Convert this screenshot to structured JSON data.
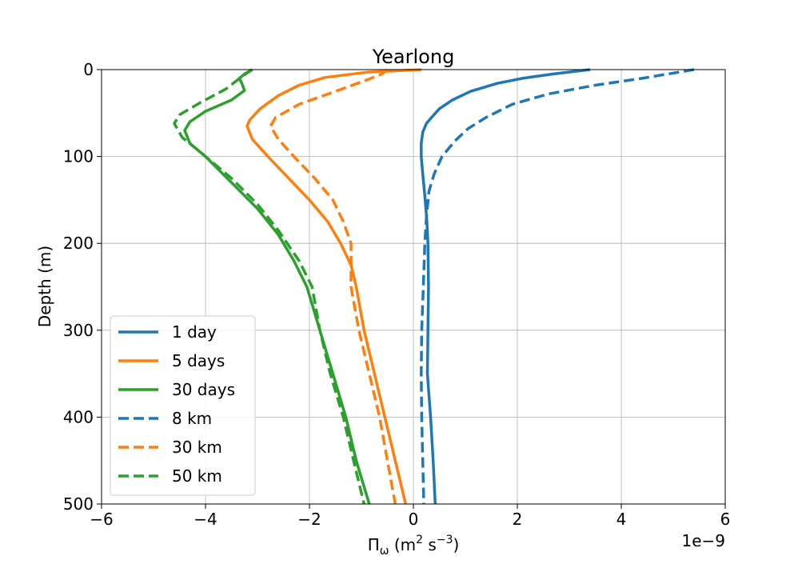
{
  "chart_data": {
    "type": "line",
    "title": "Yearlong",
    "xlabel": "Πω (m² s⁻³)",
    "xlabel_parts": {
      "symbol": "Π",
      "sub": "ω",
      "units_open": " (m",
      "sup1": "2",
      "units_mid": " s",
      "sup2": "−3",
      "units_close": ")"
    },
    "ylabel": "Depth (m)",
    "x_offset_label": "1e−9",
    "xlim": [
      -6,
      6
    ],
    "ylim": [
      0,
      500
    ],
    "y_inverted": true,
    "x_ticks": [
      -6,
      -4,
      -2,
      0,
      2,
      4,
      6
    ],
    "x_tick_labels": [
      "−6",
      "−4",
      "−2",
      "0",
      "2",
      "4",
      "6"
    ],
    "y_ticks": [
      0,
      100,
      200,
      300,
      400,
      500
    ],
    "y_tick_labels": [
      "0",
      "100",
      "200",
      "300",
      "400",
      "500"
    ],
    "grid": true,
    "legend_position": "lower-left",
    "series": [
      {
        "name": "1 day",
        "color": "#1f77b4",
        "dash": "solid",
        "points": [
          [
            3.4,
            0
          ],
          [
            2.7,
            5
          ],
          [
            2.1,
            10
          ],
          [
            1.6,
            16
          ],
          [
            1.1,
            25
          ],
          [
            0.75,
            35
          ],
          [
            0.5,
            45
          ],
          [
            0.35,
            55
          ],
          [
            0.25,
            62
          ],
          [
            0.18,
            72
          ],
          [
            0.15,
            85
          ],
          [
            0.15,
            100
          ],
          [
            0.18,
            120
          ],
          [
            0.22,
            145
          ],
          [
            0.26,
            175
          ],
          [
            0.28,
            200
          ],
          [
            0.29,
            250
          ],
          [
            0.28,
            300
          ],
          [
            0.27,
            350
          ],
          [
            0.33,
            400
          ],
          [
            0.38,
            450
          ],
          [
            0.42,
            500
          ]
        ]
      },
      {
        "name": "5 days",
        "color": "#ff7f0e",
        "dash": "solid",
        "points": [
          [
            0.15,
            0
          ],
          [
            -0.9,
            3
          ],
          [
            -1.7,
            9
          ],
          [
            -2.2,
            18
          ],
          [
            -2.6,
            30
          ],
          [
            -2.95,
            45
          ],
          [
            -3.15,
            58
          ],
          [
            -3.2,
            65
          ],
          [
            -3.1,
            80
          ],
          [
            -2.8,
            100
          ],
          [
            -2.4,
            125
          ],
          [
            -2.0,
            150
          ],
          [
            -1.65,
            175
          ],
          [
            -1.4,
            200
          ],
          [
            -1.2,
            225
          ],
          [
            -1.1,
            250
          ],
          [
            -0.95,
            300
          ],
          [
            -0.75,
            350
          ],
          [
            -0.55,
            400
          ],
          [
            -0.35,
            450
          ],
          [
            -0.15,
            500
          ]
        ]
      },
      {
        "name": "30 days",
        "color": "#2ca02c",
        "dash": "solid",
        "points": [
          [
            -3.1,
            0
          ],
          [
            -3.25,
            5
          ],
          [
            -3.35,
            10
          ],
          [
            -3.3,
            16
          ],
          [
            -3.25,
            24
          ],
          [
            -3.5,
            35
          ],
          [
            -4.0,
            48
          ],
          [
            -4.3,
            60
          ],
          [
            -4.4,
            70
          ],
          [
            -4.3,
            85
          ],
          [
            -4.0,
            100
          ],
          [
            -3.5,
            130
          ],
          [
            -3.0,
            160
          ],
          [
            -2.6,
            190
          ],
          [
            -2.3,
            220
          ],
          [
            -2.05,
            250
          ],
          [
            -1.8,
            300
          ],
          [
            -1.55,
            350
          ],
          [
            -1.3,
            400
          ],
          [
            -1.1,
            450
          ],
          [
            -0.85,
            500
          ]
        ]
      },
      {
        "name": "8 km",
        "color": "#1f77b4",
        "dash": "dashed",
        "points": [
          [
            5.4,
            0
          ],
          [
            4.4,
            10
          ],
          [
            3.5,
            18
          ],
          [
            2.6,
            28
          ],
          [
            1.9,
            40
          ],
          [
            1.4,
            55
          ],
          [
            1.05,
            68
          ],
          [
            0.8,
            82
          ],
          [
            0.55,
            100
          ],
          [
            0.4,
            120
          ],
          [
            0.3,
            140
          ],
          [
            0.25,
            170
          ],
          [
            0.22,
            200
          ],
          [
            0.19,
            250
          ],
          [
            0.16,
            300
          ],
          [
            0.15,
            350
          ],
          [
            0.16,
            400
          ],
          [
            0.18,
            450
          ],
          [
            0.2,
            500
          ]
        ]
      },
      {
        "name": "30 km",
        "color": "#ff7f0e",
        "dash": "dashed",
        "points": [
          [
            -0.5,
            0
          ],
          [
            -0.6,
            5
          ],
          [
            -0.9,
            12
          ],
          [
            -1.5,
            25
          ],
          [
            -2.2,
            40
          ],
          [
            -2.65,
            55
          ],
          [
            -2.75,
            65
          ],
          [
            -2.6,
            80
          ],
          [
            -2.3,
            100
          ],
          [
            -1.9,
            125
          ],
          [
            -1.55,
            150
          ],
          [
            -1.35,
            175
          ],
          [
            -1.2,
            200
          ],
          [
            -1.2,
            250
          ],
          [
            -1.05,
            300
          ],
          [
            -0.85,
            350
          ],
          [
            -0.65,
            400
          ],
          [
            -0.5,
            450
          ],
          [
            -0.35,
            500
          ]
        ]
      },
      {
        "name": "50 km",
        "color": "#2ca02c",
        "dash": "dashed",
        "points": [
          [
            -3.1,
            0
          ],
          [
            -3.3,
            8
          ],
          [
            -3.6,
            22
          ],
          [
            -4.1,
            38
          ],
          [
            -4.5,
            52
          ],
          [
            -4.6,
            62
          ],
          [
            -4.45,
            78
          ],
          [
            -4.2,
            90
          ],
          [
            -4.0,
            100
          ],
          [
            -3.5,
            125
          ],
          [
            -3.0,
            155
          ],
          [
            -2.6,
            185
          ],
          [
            -2.2,
            220
          ],
          [
            -1.95,
            250
          ],
          [
            -1.8,
            300
          ],
          [
            -1.6,
            350
          ],
          [
            -1.35,
            400
          ],
          [
            -1.15,
            450
          ],
          [
            -0.95,
            500
          ]
        ]
      }
    ]
  }
}
